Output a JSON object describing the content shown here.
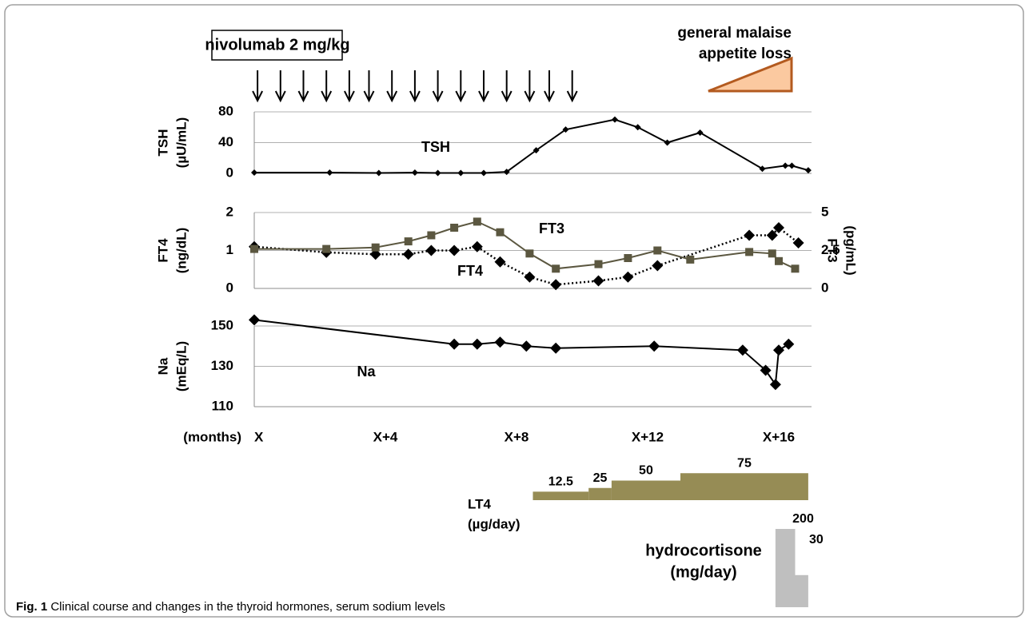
{
  "caption": {
    "label": "Fig. 1",
    "text": "Clinical course and changes in the thyroid hormones, serum sodium levels"
  },
  "treatment": {
    "label": "nivolumab 2 mg/kg",
    "doses": [
      0.1,
      0.8,
      1.5,
      2.2,
      2.9,
      3.5,
      4.2,
      4.9,
      5.6,
      6.3,
      7.0,
      7.7,
      8.4,
      9.0,
      9.7
    ]
  },
  "symptoms": [
    "general malaise",
    "appetite loss"
  ],
  "chart_data": [
    {
      "type": "line",
      "ylabel": [
        "TSH",
        "(µU/mL)"
      ],
      "ylim": [
        0,
        80
      ],
      "yticks": [
        0,
        40,
        80
      ],
      "grid": true,
      "series": [
        {
          "name": "TSH",
          "color": "#000000",
          "marker": "small-diamond",
          "line_style": "solid",
          "x": [
            0,
            2.3,
            3.8,
            4.9,
            5.6,
            6.3,
            7.0,
            7.7,
            8.6,
            9.5,
            11.0,
            11.7,
            12.6,
            13.6,
            15.5,
            16.2,
            16.4,
            16.9
          ],
          "values": [
            1,
            1,
            0.5,
            1,
            0.5,
            0.5,
            0.5,
            2,
            30,
            57,
            70,
            60,
            40,
            53,
            6,
            10,
            10,
            4
          ]
        }
      ]
    },
    {
      "type": "line",
      "ylabel": [
        "FT4",
        "(ng/dL)"
      ],
      "ylim": [
        0,
        2
      ],
      "yticks": [
        0,
        1,
        2
      ],
      "y2label": [
        "FT3",
        "(pg/mL)"
      ],
      "y2lim": [
        0,
        5
      ],
      "y2ticks": [
        0,
        2.5,
        5
      ],
      "grid": true,
      "series": [
        {
          "name": "FT4",
          "color": "#000000",
          "marker": "diamond",
          "line_style": "dotted",
          "x": [
            0,
            2.2,
            3.7,
            4.7,
            5.4,
            6.1,
            6.8,
            7.5,
            8.4,
            9.2,
            10.5,
            11.4,
            12.3,
            15.1,
            15.8,
            16.0,
            16.6
          ],
          "values": [
            1.1,
            0.95,
            0.9,
            0.9,
            1.0,
            1.0,
            1.1,
            0.7,
            0.3,
            0.1,
            0.2,
            0.3,
            0.6,
            1.4,
            1.4,
            1.6,
            1.2
          ]
        },
        {
          "name": "FT3",
          "color": "#5b5740",
          "marker": "square",
          "line_style": "solid",
          "axis": "y2",
          "x": [
            0,
            2.2,
            3.7,
            4.7,
            5.4,
            6.1,
            6.8,
            7.5,
            8.4,
            9.2,
            10.5,
            11.4,
            12.3,
            13.3,
            15.1,
            15.8,
            16.0,
            16.5
          ],
          "values": [
            2.6,
            2.6,
            2.7,
            3.1,
            3.5,
            4.0,
            4.4,
            3.7,
            2.3,
            1.3,
            1.6,
            2.0,
            2.5,
            1.9,
            2.4,
            2.3,
            1.8,
            1.3
          ]
        }
      ]
    },
    {
      "type": "line",
      "ylabel": [
        "Na",
        "(mEq/L)"
      ],
      "ylim": [
        110,
        150
      ],
      "yticks": [
        110,
        130,
        150
      ],
      "grid": true,
      "xlabel": "(months)",
      "xlim": [
        0,
        17
      ],
      "xticks": [
        {
          "value": 0,
          "label": "X"
        },
        {
          "value": 4,
          "label": "X+4"
        },
        {
          "value": 8,
          "label": "X+8"
        },
        {
          "value": 12,
          "label": "X+12"
        },
        {
          "value": 16,
          "label": "X+16"
        }
      ],
      "series": [
        {
          "name": "Na",
          "color": "#000000",
          "marker": "diamond",
          "line_style": "solid",
          "x": [
            0,
            6.1,
            6.8,
            7.5,
            8.3,
            9.2,
            12.2,
            14.9,
            15.6,
            15.9,
            16.0,
            16.3
          ],
          "values": [
            153,
            141,
            141,
            142,
            140,
            139,
            140,
            138,
            128,
            121,
            138,
            141
          ]
        }
      ]
    }
  ],
  "lt4": {
    "label": [
      "LT4",
      "(µg/day)"
    ],
    "color": "#968c55",
    "segments": [
      {
        "start": 8.5,
        "end": 10.2,
        "value": 12.5
      },
      {
        "start": 10.2,
        "end": 10.9,
        "value": 25
      },
      {
        "start": 10.9,
        "end": 13.0,
        "value": 50
      },
      {
        "start": 13.0,
        "end": 16.9,
        "value": 75
      }
    ]
  },
  "hydrocortisone": {
    "label": [
      "hydrocortisone",
      "(mg/day)"
    ],
    "color": "#bfbfbf",
    "segments": [
      {
        "start": 15.9,
        "end": 16.5,
        "value": 200
      },
      {
        "start": 16.5,
        "end": 16.9,
        "value": 30
      }
    ]
  }
}
